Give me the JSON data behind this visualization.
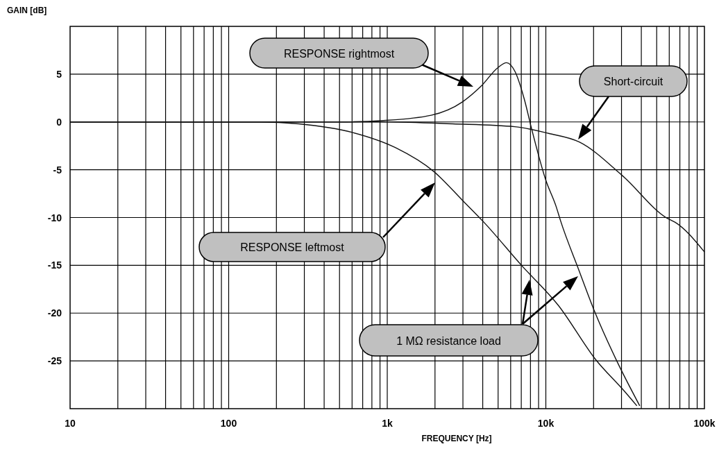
{
  "chart_data": {
    "type": "line",
    "xlabel": "FREQUENCY [Hz]",
    "ylabel": "GAIN [dB]",
    "log": "x",
    "grid": true,
    "line_style": "solid",
    "xlim": [
      10,
      100000
    ],
    "xticks": [
      10,
      100,
      {
        "value": 1000,
        "label": "1k"
      },
      {
        "value": 10000,
        "label": "10k"
      },
      {
        "value": 100000,
        "label": "100k"
      }
    ],
    "ylim": [
      -30,
      10
    ],
    "yticks": [
      -25,
      -20,
      -15,
      -10,
      -5,
      0,
      5
    ],
    "series": [
      {
        "color": "#111111",
        "x": [
          10,
          100,
          156,
          277,
          603,
          1130,
          1970,
          2980,
          4070,
          7020,
          12000,
          20700,
          31000,
          37500
        ],
        "values": [
          0,
          0,
          0,
          -0.2,
          -1.1,
          -2.7,
          -5.2,
          -8.2,
          -10.5,
          -15,
          -19.2,
          -24.9,
          -28.1,
          -29.7
        ]
      },
      {
        "color": "#111111",
        "x": [
          10,
          100,
          500,
          946,
          1890,
          2980,
          3910,
          5000,
          5650,
          6380,
          7310,
          8130,
          10000,
          11640,
          12360,
          16070,
          20270,
          28000,
          39100
        ],
        "values": [
          0,
          0,
          0,
          0.15,
          0.7,
          2.1,
          3.75,
          5.7,
          6.2,
          5.3,
          2.4,
          -0.7,
          -6.1,
          -8.9,
          -10.3,
          -15.4,
          -19.8,
          -25,
          -29.7
        ]
      },
      {
        "color": "#111111",
        "x": [
          10,
          100,
          1000,
          2580,
          6380,
          10400,
          16250,
          30300,
          58600,
          65400,
          100000
        ],
        "values": [
          0,
          0,
          0,
          -0.2,
          -0.5,
          -1.2,
          -2.1,
          -5.6,
          -10.1,
          -10.5,
          -13.6
        ]
      }
    ],
    "annotations": [
      "RESPONSE rightmost",
      "Short-circuit",
      "RESPONSE leftmost",
      "1 MΩ resistance load"
    ]
  }
}
